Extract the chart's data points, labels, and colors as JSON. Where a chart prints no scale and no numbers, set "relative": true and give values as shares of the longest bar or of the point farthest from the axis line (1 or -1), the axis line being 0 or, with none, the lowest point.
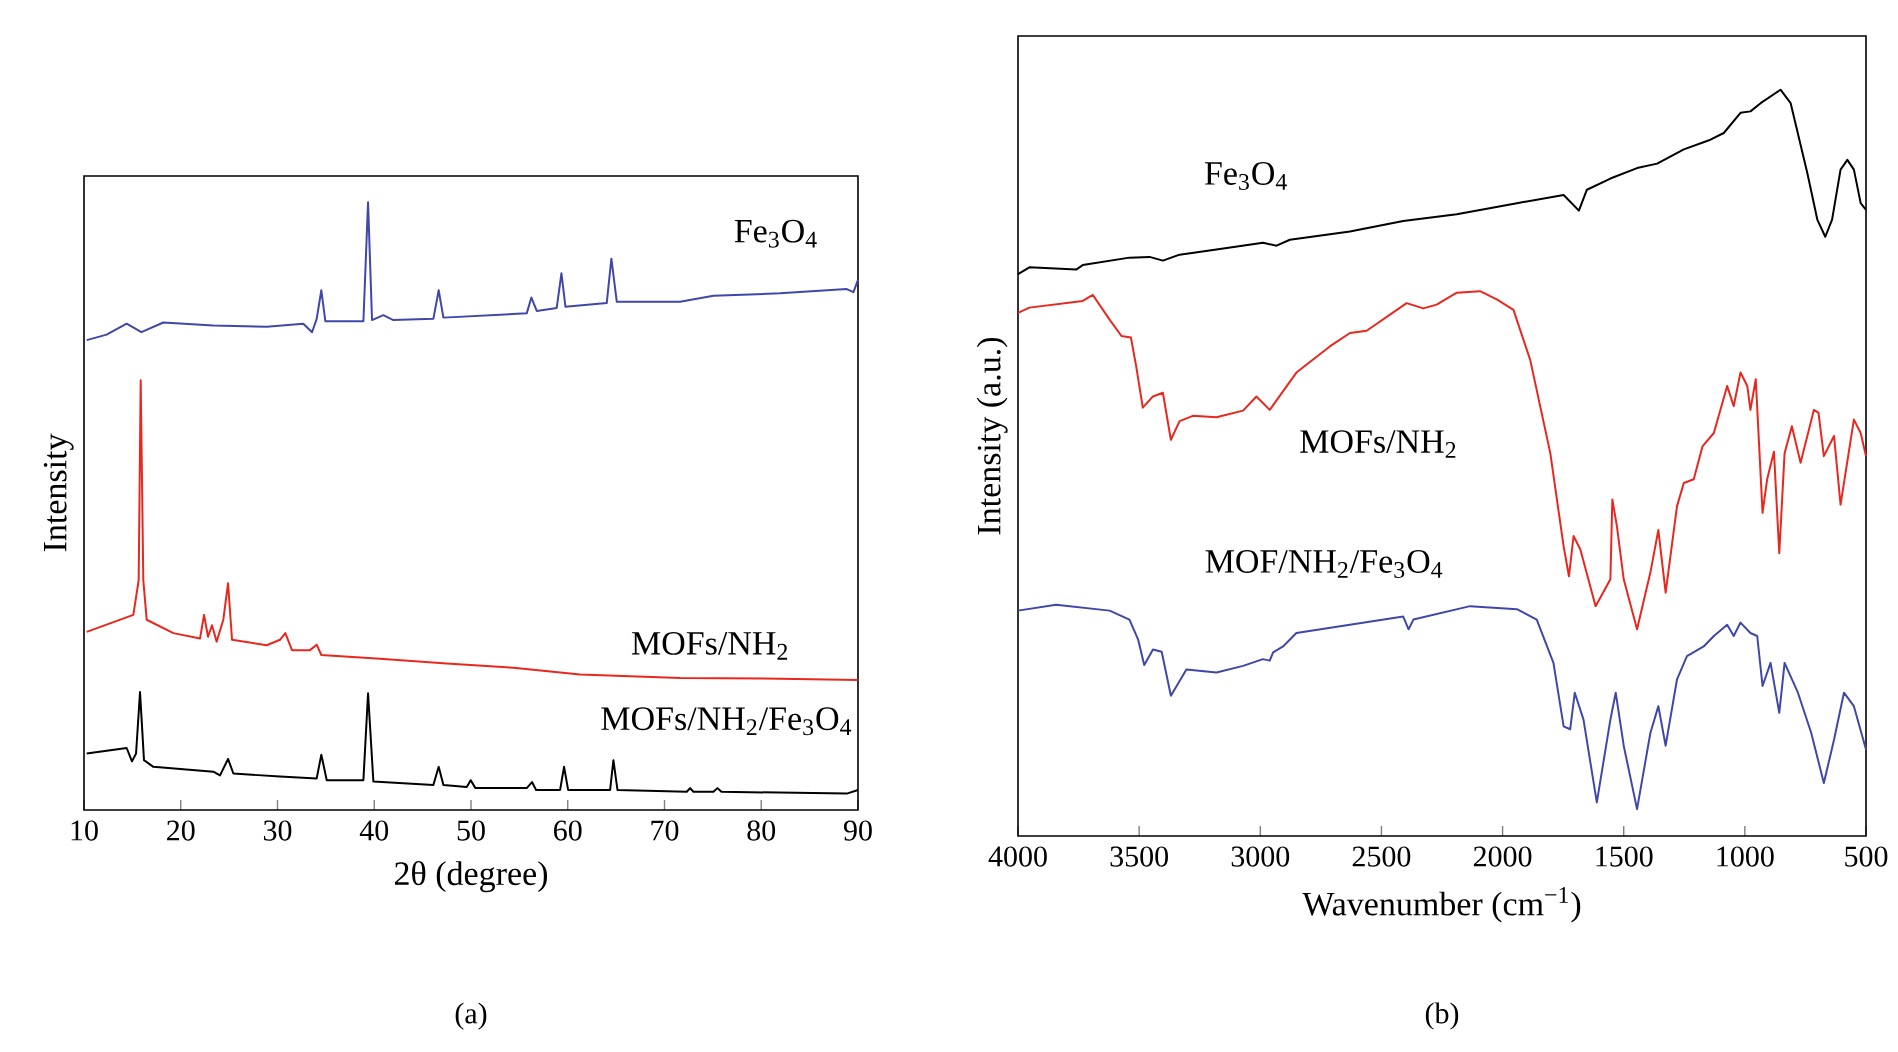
{
  "chart_data": [
    {
      "type": "line",
      "relative": true,
      "xlabel": "2θ (degree)",
      "ylabel": "Intensity",
      "xlim": [
        10,
        90
      ],
      "xticks": [
        10,
        20,
        30,
        40,
        50,
        60,
        70,
        80,
        90
      ],
      "tick_labels": "x",
      "annotations": [
        "(a)"
      ],
      "series": [
        {
          "name": "Fe$_{3}$O$_{4}$",
          "color": "#3f48a8",
          "x": [
            10.28,
            12.34,
            14.41,
            15.93,
            18.2,
            23.37,
            28.88,
            32.67,
            33.57,
            34.05,
            34.53,
            34.95,
            38.88,
            39.36,
            39.77,
            40.94,
            41.98,
            46.11,
            46.66,
            47.15,
            55.76,
            56.24,
            56.8,
            58.86,
            59.35,
            59.76,
            64.03,
            64.51,
            65.07,
            71.61,
            75.06,
            81.95,
            88.84,
            89.53,
            90
          ],
          "values": [
            0.773,
            0.782,
            0.8,
            0.786,
            0.802,
            0.797,
            0.795,
            0.8,
            0.786,
            0.808,
            0.855,
            0.804,
            0.804,
            1.0,
            0.806,
            0.814,
            0.806,
            0.808,
            0.855,
            0.81,
            0.817,
            0.843,
            0.821,
            0.826,
            0.883,
            0.828,
            0.834,
            0.907,
            0.836,
            0.836,
            0.846,
            0.85,
            0.857,
            0.852,
            0.872
          ]
        },
        {
          "name": "MOFs/NH$_{2}$",
          "color": "#e8281e",
          "x": [
            10.28,
            15.1,
            15.65,
            15.86,
            16.13,
            16.48,
            19.24,
            21.99,
            22.41,
            22.82,
            23.23,
            23.71,
            24.4,
            24.89,
            25.3,
            28.88,
            30.26,
            30.81,
            31.5,
            33.36,
            34.05,
            34.53,
            40.6,
            47.49,
            54.38,
            61.27,
            71.61,
            81.95,
            90
          ],
          "values": [
            0.293,
            0.321,
            0.378,
            0.707,
            0.378,
            0.313,
            0.291,
            0.282,
            0.321,
            0.285,
            0.304,
            0.277,
            0.313,
            0.373,
            0.28,
            0.271,
            0.28,
            0.291,
            0.263,
            0.263,
            0.272,
            0.255,
            0.249,
            0.241,
            0.234,
            0.223,
            0.217,
            0.216,
            0.214
          ]
        },
        {
          "name": "MOFs/NH$_{2}$/Fe$_{3}$O$_{4}$",
          "color": "#000000",
          "x": [
            10.28,
            14.41,
            14.96,
            15.38,
            15.79,
            16.2,
            17.17,
            23.37,
            24.06,
            24.89,
            25.44,
            30.26,
            34.05,
            34.53,
            35.09,
            38.88,
            39.36,
            39.91,
            46.11,
            46.66,
            47.15,
            49.56,
            49.97,
            50.46,
            55.76,
            56.31,
            56.73,
            59.21,
            59.62,
            60.04,
            64.38,
            64.72,
            65.14,
            72.3,
            72.65,
            72.99,
            75.06,
            75.47,
            75.89,
            88.84,
            90
          ],
          "values": [
            0.093,
            0.102,
            0.08,
            0.093,
            0.194,
            0.082,
            0.071,
            0.063,
            0.057,
            0.084,
            0.06,
            0.055,
            0.052,
            0.091,
            0.049,
            0.049,
            0.192,
            0.047,
            0.041,
            0.071,
            0.041,
            0.038,
            0.049,
            0.036,
            0.036,
            0.046,
            0.033,
            0.033,
            0.071,
            0.033,
            0.033,
            0.082,
            0.033,
            0.03,
            0.036,
            0.03,
            0.03,
            0.036,
            0.03,
            0.027,
            0.033
          ]
        }
      ]
    },
    {
      "type": "line",
      "relative": true,
      "xlabel": "Wavenumber (cm$^{−1}$)",
      "ylabel": "Intensity (a.u.)",
      "xlim": [
        4000,
        500
      ],
      "xticks": [
        4000,
        3500,
        3000,
        2500,
        2000,
        1500,
        1000,
        500
      ],
      "tick_labels": "x",
      "annotations": [
        "(b)"
      ],
      "series": [
        {
          "name": "Fe$_{3}$O$_{4}$",
          "color": "#000000",
          "x": [
            4000,
            3953,
            3760,
            3733,
            3540,
            3457,
            3402,
            3333,
            3181,
            2989,
            2933,
            2878,
            2630,
            2410,
            2189,
            1941,
            1748,
            1685,
            1652,
            1555,
            1500,
            1445,
            1362,
            1252,
            1142,
            1087,
            1018,
            977,
            935,
            853,
            811,
            742,
            701,
            668,
            640,
            605,
            577,
            550,
            522,
            500
          ],
          "values": [
            0.753,
            0.762,
            0.759,
            0.765,
            0.775,
            0.776,
            0.771,
            0.779,
            0.786,
            0.795,
            0.791,
            0.799,
            0.81,
            0.824,
            0.833,
            0.848,
            0.859,
            0.838,
            0.866,
            0.881,
            0.888,
            0.895,
            0.901,
            0.92,
            0.933,
            0.942,
            0.969,
            0.971,
            0.982,
            1.0,
            0.982,
            0.888,
            0.826,
            0.803,
            0.826,
            0.893,
            0.906,
            0.893,
            0.848,
            0.839
          ]
        },
        {
          "name": "MOFs/NH$_{2}$",
          "color": "#e8281e",
          "x": [
            4000,
            3953,
            3733,
            3691,
            3622,
            3573,
            3534,
            3512,
            3485,
            3443,
            3402,
            3369,
            3333,
            3278,
            3181,
            3071,
            3016,
            2961,
            2851,
            2713,
            2630,
            2561,
            2396,
            2327,
            2272,
            2189,
            2093,
            2024,
            1955,
            1886,
            1803,
            1748,
            1726,
            1707,
            1679,
            1616,
            1555,
            1547,
            1528,
            1500,
            1445,
            1390,
            1357,
            1327,
            1280,
            1252,
            1211,
            1175,
            1128,
            1073,
            1046,
            1018,
            990,
            977,
            955,
            927,
            908,
            880,
            858,
            836,
            806,
            770,
            715,
            696,
            674,
            632,
            605,
            550,
            522,
            500
          ],
          "values": [
            0.701,
            0.708,
            0.717,
            0.725,
            0.692,
            0.67,
            0.668,
            0.629,
            0.574,
            0.589,
            0.594,
            0.531,
            0.556,
            0.563,
            0.561,
            0.57,
            0.589,
            0.571,
            0.621,
            0.656,
            0.674,
            0.677,
            0.714,
            0.707,
            0.712,
            0.728,
            0.73,
            0.719,
            0.705,
            0.638,
            0.513,
            0.388,
            0.348,
            0.402,
            0.384,
            0.308,
            0.344,
            0.451,
            0.415,
            0.344,
            0.277,
            0.353,
            0.41,
            0.326,
            0.442,
            0.473,
            0.478,
            0.522,
            0.54,
            0.603,
            0.576,
            0.621,
            0.603,
            0.571,
            0.612,
            0.433,
            0.478,
            0.515,
            0.379,
            0.513,
            0.549,
            0.5,
            0.571,
            0.567,
            0.509,
            0.536,
            0.444,
            0.558,
            0.54,
            0.509
          ]
        },
        {
          "name": "MOF/NH$_{2}$/Fe$_{3}$O$_{4}$",
          "color": "#3f48a8",
          "x": [
            4000,
            3843,
            3622,
            3540,
            3504,
            3479,
            3443,
            3407,
            3369,
            3305,
            3181,
            3071,
            2989,
            2961,
            2947,
            2906,
            2851,
            2630,
            2410,
            2388,
            2368,
            2134,
            1941,
            1859,
            1790,
            1748,
            1721,
            1702,
            1666,
            1611,
            1555,
            1533,
            1500,
            1445,
            1390,
            1357,
            1327,
            1280,
            1239,
            1170,
            1128,
            1073,
            1046,
            1018,
            977,
            949,
            927,
            894,
            858,
            836,
            781,
            726,
            674,
            632,
            591,
            550,
            500
          ],
          "values": [
            0.302,
            0.31,
            0.302,
            0.29,
            0.263,
            0.229,
            0.25,
            0.247,
            0.188,
            0.223,
            0.219,
            0.228,
            0.237,
            0.235,
            0.246,
            0.254,
            0.272,
            0.283,
            0.294,
            0.277,
            0.29,
            0.308,
            0.304,
            0.29,
            0.232,
            0.147,
            0.143,
            0.192,
            0.156,
            0.045,
            0.156,
            0.192,
            0.121,
            0.036,
            0.138,
            0.174,
            0.121,
            0.21,
            0.241,
            0.254,
            0.268,
            0.283,
            0.268,
            0.286,
            0.272,
            0.268,
            0.201,
            0.232,
            0.165,
            0.232,
            0.192,
            0.138,
            0.071,
            0.129,
            0.192,
            0.174,
            0.116
          ]
        }
      ]
    }
  ]
}
